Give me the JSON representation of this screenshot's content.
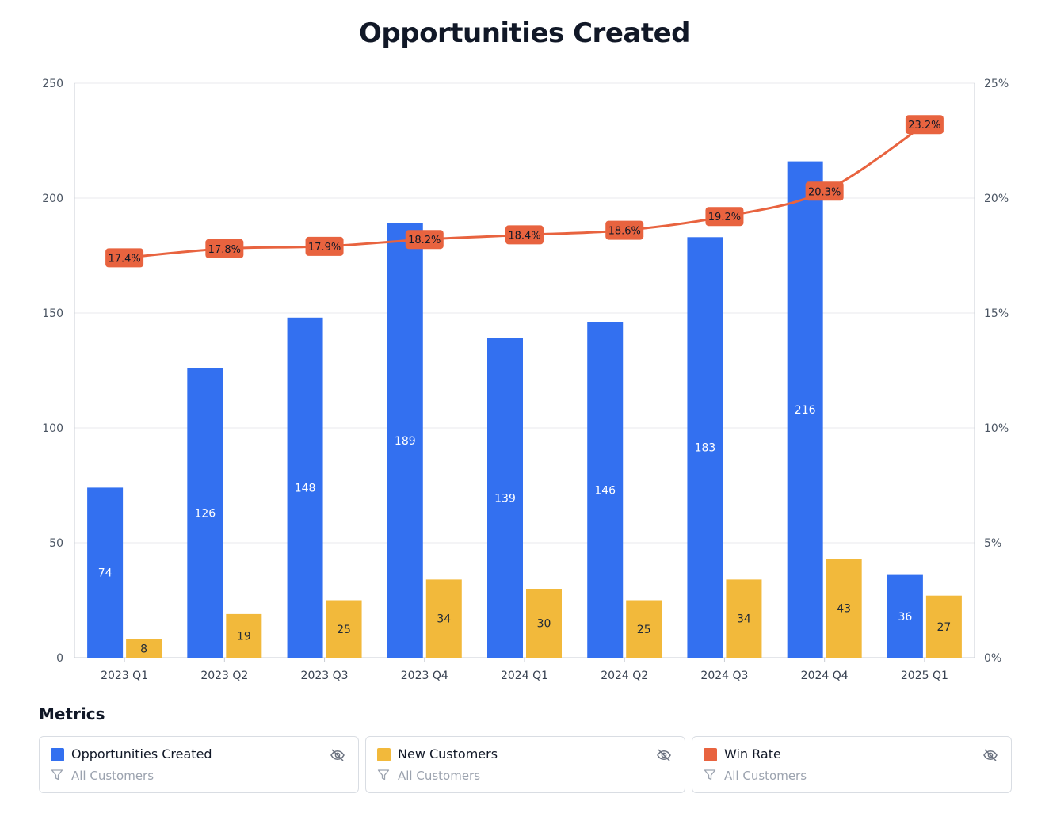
{
  "title": "Opportunities Created",
  "chart_data": {
    "type": "bar",
    "categories": [
      "2023 Q1",
      "2023 Q2",
      "2023 Q3",
      "2023 Q4",
      "2024 Q1",
      "2024 Q2",
      "2024 Q3",
      "2024 Q4",
      "2025 Q1"
    ],
    "series": [
      {
        "name": "Opportunities Created",
        "type": "bar",
        "axis": "left",
        "color": "#3370f0",
        "values": [
          74,
          126,
          148,
          189,
          139,
          146,
          183,
          216,
          36
        ]
      },
      {
        "name": "New Customers",
        "type": "bar",
        "axis": "left",
        "color": "#f2b93b",
        "values": [
          8,
          19,
          25,
          34,
          30,
          25,
          34,
          43,
          27
        ]
      },
      {
        "name": "Win Rate",
        "type": "line",
        "axis": "right",
        "color": "#e8633f",
        "values": [
          17.4,
          17.8,
          17.9,
          18.2,
          18.4,
          18.6,
          19.2,
          20.3,
          23.2
        ],
        "labels": [
          "17.4%",
          "17.8%",
          "17.9%",
          "18.2%",
          "18.4%",
          "18.6%",
          "19.2%",
          "20.3%",
          "23.2%"
        ]
      }
    ],
    "ylim": [
      0,
      250
    ],
    "yticks": [
      "0",
      "50",
      "100",
      "150",
      "200",
      "250"
    ],
    "y2lim": [
      0,
      25
    ],
    "y2ticks": [
      "0%",
      "5%",
      "10%",
      "15%",
      "20%",
      "25%"
    ],
    "grid": true
  },
  "metrics": {
    "heading": "Metrics",
    "cards": [
      {
        "label": "Opportunities Created",
        "filter": "All Customers",
        "color": "#3370f0"
      },
      {
        "label": "New Customers",
        "filter": "All Customers",
        "color": "#f2b93b"
      },
      {
        "label": "Win Rate",
        "filter": "All Customers",
        "color": "#e8633f"
      }
    ]
  }
}
